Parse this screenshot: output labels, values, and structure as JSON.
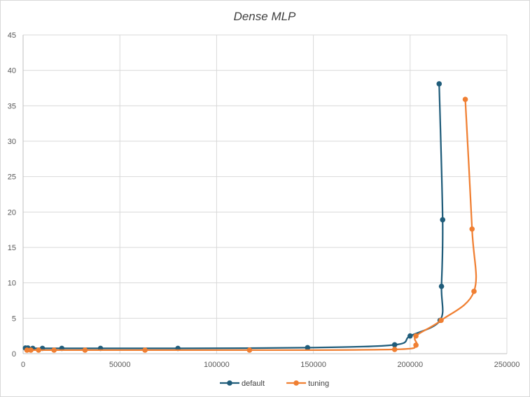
{
  "chart_data": {
    "type": "scatter",
    "title": "Dense MLP",
    "xlabel": "",
    "ylabel": "",
    "xlim": [
      0,
      250000
    ],
    "ylim": [
      0,
      45
    ],
    "xticks": [
      "0",
      "50000",
      "100000",
      "150000",
      "200000",
      "250000"
    ],
    "yticks": [
      "0",
      "5",
      "10",
      "15",
      "20",
      "25",
      "30",
      "35",
      "40",
      "45"
    ],
    "grid": true,
    "smooth_lines": true,
    "legend_position": "bottom",
    "series": [
      {
        "name": "default",
        "color": "#1f5c7a",
        "points": [
          [
            1200,
            0.8
          ],
          [
            2500,
            0.8
          ],
          [
            5000,
            0.75
          ],
          [
            10000,
            0.75
          ],
          [
            20000,
            0.75
          ],
          [
            40000,
            0.75
          ],
          [
            80000,
            0.75
          ],
          [
            147000,
            0.85
          ],
          [
            192000,
            1.25
          ],
          [
            200000,
            2.5
          ],
          [
            215500,
            4.7
          ],
          [
            216200,
            9.5
          ],
          [
            216800,
            18.9
          ],
          [
            215000,
            38.1
          ]
        ]
      },
      {
        "name": "tuning",
        "color": "#f07f32",
        "points": [
          [
            2000,
            0.5
          ],
          [
            4000,
            0.5
          ],
          [
            8000,
            0.5
          ],
          [
            16000,
            0.5
          ],
          [
            32000,
            0.5
          ],
          [
            63000,
            0.5
          ],
          [
            117000,
            0.5
          ],
          [
            192000,
            0.6
          ],
          [
            203000,
            1.2
          ],
          [
            203000,
            2.5
          ],
          [
            216000,
            4.7
          ],
          [
            233000,
            8.8
          ],
          [
            232000,
            17.6
          ],
          [
            228500,
            35.9
          ]
        ]
      }
    ]
  }
}
